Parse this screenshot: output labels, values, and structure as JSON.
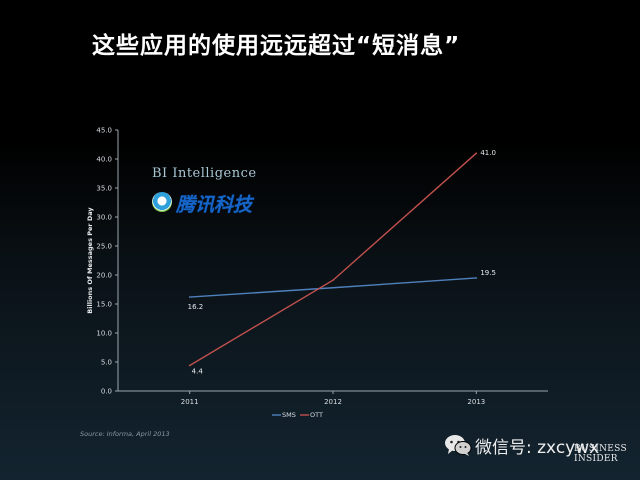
{
  "slide": {
    "title": "这些应用的使用远远超过“短消息”",
    "watermark_bi": "BI Intelligence",
    "watermark_tencent": "腾讯科技",
    "source": "Source: Informa, April 2013",
    "wechat_label": "微信号: zxcywx",
    "corner_logo_line1": "BUSINESS",
    "corner_logo_line2": "INSIDER"
  },
  "chart_data": {
    "type": "line",
    "title": "",
    "xlabel": "",
    "ylabel": "Billions Of Messages Per Day",
    "x": [
      "2011",
      "2012",
      "2013"
    ],
    "ylim": [
      0,
      45
    ],
    "yticks": [
      "0.0",
      "5.0",
      "10.0",
      "15.0",
      "20.0",
      "25.0",
      "30.0",
      "35.0",
      "40.0",
      "45.0"
    ],
    "series": [
      {
        "name": "SMS",
        "values": [
          16.2,
          17.8,
          19.5
        ],
        "labels": [
          "16.2",
          "",
          "19.5"
        ],
        "color": "#4f81bd"
      },
      {
        "name": "OTT",
        "values": [
          4.4,
          19.1,
          41.0
        ],
        "labels": [
          "4.4",
          "",
          "41.0"
        ],
        "color": "#c0504d"
      }
    ],
    "legend": "bottom",
    "grid": false
  }
}
